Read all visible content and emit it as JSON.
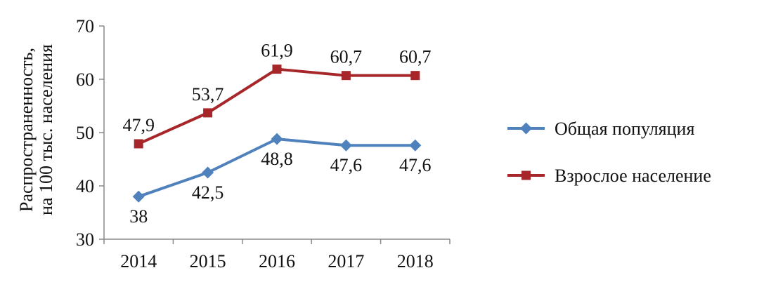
{
  "chart_data": {
    "type": "line",
    "categories": [
      "2014",
      "2015",
      "2016",
      "2017",
      "2018"
    ],
    "series": [
      {
        "name": "Общая популяция",
        "color": "#4F81BD",
        "marker": "diamond",
        "values": [
          38,
          42.5,
          48.8,
          47.6,
          47.6
        ],
        "labels": [
          "38",
          "42,5",
          "48,8",
          "47,6",
          "47,6"
        ],
        "label_position": "below"
      },
      {
        "name": "Взрослое население",
        "color": "#A6262A",
        "marker": "square",
        "values": [
          47.9,
          53.7,
          61.9,
          60.7,
          60.7
        ],
        "labels": [
          "47,9",
          "53,7",
          "61,9",
          "60,7",
          "60,7"
        ],
        "label_position": "above"
      }
    ],
    "ylabel_lines": [
      "Распространенность,",
      "на 100 тыс. населения"
    ],
    "xlabel": "",
    "ylim": [
      30,
      70
    ],
    "yticks": [
      30,
      40,
      50,
      60,
      70
    ],
    "grid": false,
    "legend_position": "right"
  }
}
